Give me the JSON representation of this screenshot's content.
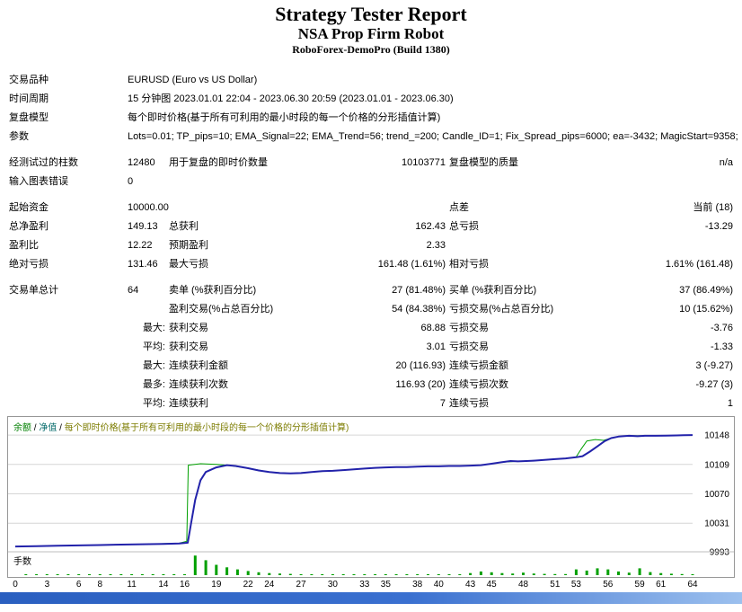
{
  "header": {
    "title": "Strategy Tester Report",
    "subtitle": "NSA Prop Firm Robot",
    "broker": "RoboForex-DemoPro (Build 1380)"
  },
  "table": {
    "symbol_label": "交易品种",
    "symbol_value": "EURUSD (Euro vs US Dollar)",
    "period_label": "时间周期",
    "period_value": "15 分钟图 2023.01.01 22:04 - 2023.06.30 20:59 (2023.01.01 - 2023.06.30)",
    "model_label": "复盘模型",
    "model_value": "每个即时价格(基于所有可利用的最小时段的每一个价格的分形插值计算)",
    "params_label": "参数",
    "params_value": "Lots=0.01; TP_pips=10; EMA_Signal=22; EMA_Trend=56; trend_=200; Candle_ID=1; Fix_Spread_pips=6000; ea=-3432; MagicStart=9358;",
    "bars_label": "经测试过的柱数",
    "bars_value": "12480",
    "ticks_label": "用于复盘的即时价数量",
    "ticks_value": "10103771",
    "quality_label": "复盘模型的质量",
    "quality_value": "n/a",
    "mismatch_label": "输入图表错误",
    "mismatch_value": "0",
    "deposit_label": "起始资金",
    "deposit_value": "10000.00",
    "spread_label": "点差",
    "spread_value": "当前 (18)",
    "net_profit_label": "总净盈利",
    "net_profit_value": "149.13",
    "gross_profit_label": "总获利",
    "gross_profit_value": "162.43",
    "gross_loss_label": "总亏损",
    "gross_loss_value": "-13.29",
    "profit_factor_label": "盈利比",
    "profit_factor_value": "12.22",
    "expected_payoff_label": "预期盈利",
    "expected_payoff_value": "2.33",
    "abs_drawdown_label": "绝对亏损",
    "abs_drawdown_value": "131.46",
    "max_drawdown_label": "最大亏损",
    "max_drawdown_value": "161.48 (1.61%)",
    "rel_drawdown_label": "相对亏损",
    "rel_drawdown_value": "1.61% (161.48)",
    "total_trades_label": "交易单总计",
    "total_trades_value": "64",
    "short_label": "卖单 (%获利百分比)",
    "short_value": "27 (81.48%)",
    "long_label": "买单 (%获利百分比)",
    "long_value": "37 (86.49%)",
    "profit_trades_label": "盈利交易(%占总百分比)",
    "profit_trades_value": "54 (84.38%)",
    "loss_trades_label": "亏损交易(%占总百分比)",
    "loss_trades_value": "10 (15.62%)",
    "largest_prefix": "最大:",
    "largest_profit_label": "获利交易",
    "largest_profit_value": "68.88",
    "largest_loss_label": "亏损交易",
    "largest_loss_value": "-3.76",
    "average_prefix": "平均:",
    "average_profit_label": "获利交易",
    "average_profit_value": "3.01",
    "average_loss_label": "亏损交易",
    "average_loss_value": "-1.33",
    "maxconsec_prefix": "最大:",
    "consec_profit_label": "连续获利金额",
    "consec_profit_value": "20 (116.93)",
    "consec_loss_label": "连续亏损金额",
    "consec_loss_value": "3 (-9.27)",
    "maximal_prefix": "最多:",
    "consec_count_profit_label": "连续获利次数",
    "consec_count_profit_value": "116.93 (20)",
    "consec_count_loss_label": "连续亏损次数",
    "consec_count_loss_value": "-9.27 (3)",
    "avgconsec_prefix": "平均:",
    "avg_consec_win_label": "连续获利",
    "avg_consec_win_value": "7",
    "avg_consec_loss_label": "连续亏损",
    "avg_consec_loss_value": "1"
  },
  "chart_data": {
    "type": "line",
    "legend": [
      "余额",
      "净值",
      "每个即时价格(基于所有可利用的最小时段的每一个价格的分形插值计算)"
    ],
    "legend_separator": " / ",
    "legend_colors": [
      "#008000",
      "#006868",
      "#7c7c00"
    ],
    "y_ticks": [
      10148,
      10109,
      10070,
      10031,
      9993
    ],
    "x_ticks": [
      0,
      3,
      6,
      8,
      11,
      14,
      16,
      19,
      22,
      24,
      27,
      30,
      33,
      35,
      38,
      40,
      43,
      45,
      48,
      51,
      53,
      56,
      59,
      61,
      64
    ],
    "ylim": [
      9993,
      10172
    ],
    "xlim": [
      0,
      64
    ],
    "series": [
      {
        "name": "余额",
        "color": "#2222aa",
        "x": [
          0,
          2,
          4,
          6,
          8,
          10,
          12,
          14,
          15.5,
          16.3,
          16.6,
          17,
          17.5,
          18,
          19,
          20,
          20.8,
          22,
          23,
          24,
          25,
          26,
          27,
          28,
          29,
          30,
          31,
          32,
          33,
          34,
          35,
          36,
          37,
          38,
          39,
          40,
          41,
          42,
          43,
          44,
          45,
          46,
          46.8,
          47.5,
          48.3,
          49,
          50,
          51,
          52,
          53,
          53.6,
          54.3,
          55,
          55.7,
          56.3,
          57,
          58,
          58.8,
          59.5,
          60.5,
          61.5,
          62.5,
          63.2,
          64
        ],
        "y": [
          10000,
          10000.5,
          10001,
          10001.5,
          10002,
          10002.5,
          10003,
          10003.5,
          10004,
          10005,
          10030,
          10062,
          10088,
          10099,
          10105,
          10108,
          10107,
          10104,
          10101,
          10099,
          10097.5,
          10097,
          10097.5,
          10099,
          10100,
          10100.5,
          10101.5,
          10102.5,
          10103.5,
          10104.5,
          10105,
          10105.5,
          10105.5,
          10106,
          10106.5,
          10106.5,
          10107,
          10107,
          10107.5,
          10108,
          10110,
          10112,
          10113.5,
          10113,
          10113.5,
          10114,
          10115,
          10116,
          10117,
          10118.5,
          10120,
          10126,
          10133,
          10140,
          10144,
          10146,
          10147,
          10146.5,
          10147,
          10147,
          10147.2,
          10147.5,
          10147.8,
          10148
        ]
      },
      {
        "name": "净值",
        "color": "#00a000",
        "x": [
          0,
          4,
          8,
          12,
          15.5,
          16.2,
          16.35,
          17.5,
          19,
          20,
          22,
          24,
          26,
          28,
          30,
          32,
          34,
          36,
          38,
          40,
          42,
          44,
          45,
          46,
          48,
          50,
          52,
          53,
          53.5,
          54,
          54.8,
          55.6,
          56.3,
          57,
          58,
          60,
          62,
          64
        ],
        "y": [
          10000,
          10001,
          10002,
          10003,
          10004.5,
          10007,
          10108,
          10110,
          10109,
          10108,
          10104,
          10099,
          10097,
          10099,
          10100.5,
          10102.5,
          10104.5,
          10105.5,
          10106,
          10106.5,
          10107,
          10108,
          10110,
          10112,
          10113.5,
          10115,
          10117,
          10119,
          10130,
          10140,
          10142,
          10141,
          10144,
          10146,
          10147,
          10147,
          10147.5,
          10148
        ]
      }
    ],
    "lots": {
      "label": "手数",
      "color": "#00a000",
      "values": [
        0,
        0.03,
        0.03,
        0.03,
        0.03,
        0.03,
        0.03,
        0.03,
        0.03,
        0.03,
        0.03,
        0.03,
        0.03,
        0.03,
        0.03,
        0.03,
        0.03,
        0.95,
        0.72,
        0.5,
        0.38,
        0.28,
        0.2,
        0.14,
        0.1,
        0.08,
        0.06,
        0.04,
        0.04,
        0.04,
        0.04,
        0.04,
        0.04,
        0.04,
        0.04,
        0.04,
        0.04,
        0.04,
        0.04,
        0.04,
        0.04,
        0.04,
        0.04,
        0.1,
        0.18,
        0.14,
        0.1,
        0.08,
        0.12,
        0.08,
        0.06,
        0.05,
        0.05,
        0.28,
        0.22,
        0.33,
        0.28,
        0.18,
        0.12,
        0.33,
        0.15,
        0.1,
        0.07,
        0.05,
        0.04
      ]
    }
  }
}
